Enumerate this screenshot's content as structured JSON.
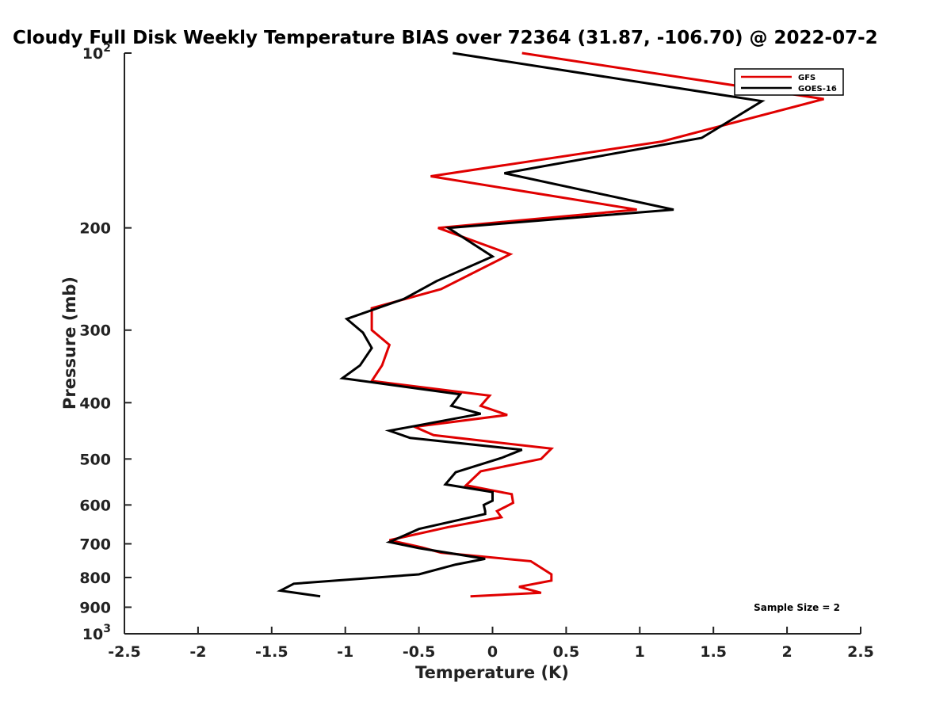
{
  "chart_data": {
    "type": "line",
    "title": "Cloudy Full Disk Weekly Temperature BIAS over 72364 (31.87, -106.70) @ 2022-07-2",
    "xlabel": "Temperature (K)",
    "ylabel": "Pressure (mb)",
    "xlim": [
      -2.5,
      2.5
    ],
    "ylim": [
      100,
      1000
    ],
    "y_scale": "log",
    "y_reversed": true,
    "grid": false,
    "legend_position": "top-right",
    "x_ticks": [
      {
        "value": -2.5,
        "label": "-2.5"
      },
      {
        "value": -2,
        "label": "-2"
      },
      {
        "value": -1.5,
        "label": "-1.5"
      },
      {
        "value": -1,
        "label": "-1"
      },
      {
        "value": -0.5,
        "label": "-0.5"
      },
      {
        "value": 0,
        "label": "0"
      },
      {
        "value": 0.5,
        "label": "0.5"
      },
      {
        "value": 1,
        "label": "1"
      },
      {
        "value": 1.5,
        "label": "1.5"
      },
      {
        "value": 2,
        "label": "2"
      },
      {
        "value": 2.5,
        "label": "2.5"
      }
    ],
    "y_ticks": [
      {
        "value": 100,
        "base": "10",
        "exp": "2"
      },
      {
        "value": 200,
        "base": "200",
        "exp": ""
      },
      {
        "value": 300,
        "base": "300",
        "exp": ""
      },
      {
        "value": 400,
        "base": "400",
        "exp": ""
      },
      {
        "value": 500,
        "base": "500",
        "exp": ""
      },
      {
        "value": 600,
        "base": "600",
        "exp": ""
      },
      {
        "value": 700,
        "base": "700",
        "exp": ""
      },
      {
        "value": 800,
        "base": "800",
        "exp": ""
      },
      {
        "value": 900,
        "base": "900",
        "exp": ""
      },
      {
        "value": 1000,
        "base": "10",
        "exp": "3"
      }
    ],
    "series": [
      {
        "name": "GFS",
        "color": "#e00000",
        "points": [
          [
            0.2,
            100
          ],
          [
            2.25,
            120
          ],
          [
            1.15,
            142
          ],
          [
            -0.42,
            163
          ],
          [
            0.98,
            186
          ],
          [
            -0.37,
            200
          ],
          [
            0.12,
            222
          ],
          [
            -0.35,
            255
          ],
          [
            -0.82,
            275
          ],
          [
            -0.82,
            300
          ],
          [
            -0.7,
            318
          ],
          [
            -0.75,
            345
          ],
          [
            -0.82,
            367
          ],
          [
            -0.02,
            389
          ],
          [
            -0.08,
            405
          ],
          [
            0.1,
            420
          ],
          [
            -0.53,
            440
          ],
          [
            -0.4,
            455
          ],
          [
            0.4,
            480
          ],
          [
            0.33,
            500
          ],
          [
            -0.08,
            525
          ],
          [
            -0.18,
            555
          ],
          [
            0.13,
            575
          ],
          [
            0.14,
            595
          ],
          [
            0.03,
            615
          ],
          [
            0.06,
            630
          ],
          [
            -0.3,
            655
          ],
          [
            -0.7,
            690
          ],
          [
            -0.48,
            710
          ],
          [
            -0.35,
            725
          ],
          [
            0.26,
            750
          ],
          [
            0.4,
            790
          ],
          [
            0.4,
            810
          ],
          [
            0.18,
            830
          ],
          [
            0.33,
            850
          ],
          [
            -0.15,
            862
          ]
        ]
      },
      {
        "name": "GOES-16",
        "color": "#000000",
        "points": [
          [
            -0.27,
            100
          ],
          [
            1.83,
            121
          ],
          [
            1.42,
            140
          ],
          [
            0.08,
            161
          ],
          [
            1.23,
            186
          ],
          [
            -0.3,
            200
          ],
          [
            0,
            224
          ],
          [
            -0.38,
            247
          ],
          [
            -0.6,
            265
          ],
          [
            -0.99,
            287
          ],
          [
            -0.88,
            303
          ],
          [
            -0.82,
            322
          ],
          [
            -0.9,
            345
          ],
          [
            -1.02,
            363
          ],
          [
            -0.22,
            387
          ],
          [
            -0.28,
            405
          ],
          [
            -0.08,
            418
          ],
          [
            -0.7,
            447
          ],
          [
            -0.56,
            460
          ],
          [
            0.2,
            482
          ],
          [
            0.06,
            498
          ],
          [
            -0.25,
            527
          ],
          [
            -0.32,
            553
          ],
          [
            0,
            570
          ],
          [
            0,
            590
          ],
          [
            -0.06,
            600
          ],
          [
            -0.05,
            615
          ],
          [
            -0.05,
            622
          ],
          [
            -0.5,
            660
          ],
          [
            -0.7,
            695
          ],
          [
            -0.5,
            712
          ],
          [
            -0.05,
            743
          ],
          [
            -0.25,
            760
          ],
          [
            -0.5,
            790
          ],
          [
            -1.35,
            820
          ],
          [
            -1.44,
            843
          ],
          [
            -1.17,
            862
          ]
        ]
      }
    ],
    "annotations": [
      "Sample Size = 2"
    ]
  }
}
